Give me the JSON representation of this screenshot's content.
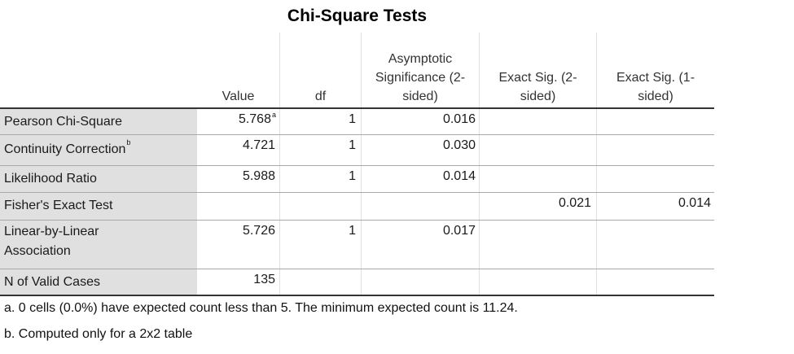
{
  "title": "Chi-Square Tests",
  "columns": [
    "",
    "Value",
    "df",
    "Asymptotic\nSignificance (2-\nsided)",
    "Exact Sig. (2-\nsided)",
    "Exact Sig. (1-\nsided)"
  ],
  "rows": [
    {
      "label": "Pearson Chi-Square",
      "label_sup": "",
      "value": "5.768",
      "value_sup": "a",
      "df": "1",
      "asymp": "0.016",
      "exact2": "",
      "exact1": ""
    },
    {
      "label": "Continuity Correction",
      "label_sup": "b",
      "value": "4.721",
      "value_sup": "",
      "df": "1",
      "asymp": "0.030",
      "exact2": "",
      "exact1": ""
    },
    {
      "label": "Likelihood Ratio",
      "label_sup": "",
      "value": "5.988",
      "value_sup": "",
      "df": "1",
      "asymp": "0.014",
      "exact2": "",
      "exact1": ""
    },
    {
      "label": "Fisher's Exact Test",
      "label_sup": "",
      "value": "",
      "value_sup": "",
      "df": "",
      "asymp": "",
      "exact2": "0.021",
      "exact1": "0.014"
    },
    {
      "label": "Linear-by-Linear\nAssociation",
      "label_sup": "",
      "value": "5.726",
      "value_sup": "",
      "df": "1",
      "asymp": "0.017",
      "exact2": "",
      "exact1": ""
    },
    {
      "label": "N of Valid Cases",
      "label_sup": "",
      "value": "135",
      "value_sup": "",
      "df": "",
      "asymp": "",
      "exact2": "",
      "exact1": ""
    }
  ],
  "footnotes": [
    "a. 0 cells (0.0%) have expected count less than 5. The minimum expected count is 11.24.",
    "b. Computed only for a 2x2 table"
  ]
}
